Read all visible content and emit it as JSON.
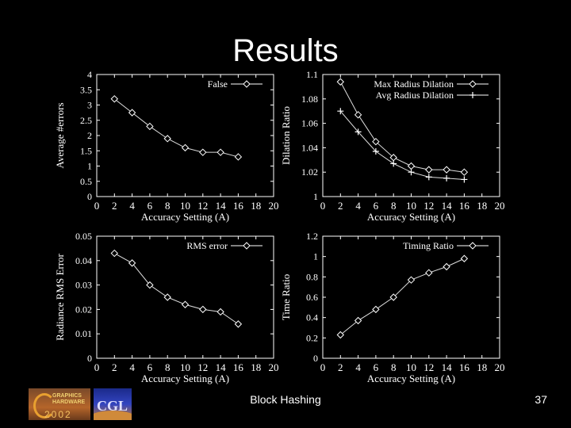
{
  "slide": {
    "title": "Results",
    "footer": "Block Hashing",
    "page": "37",
    "logos": [
      "graphics-hardware-2002-logo",
      "cgl-logo"
    ],
    "logo_text": {
      "line1": "GRAPHICS",
      "line2": "HARDWARE",
      "year": "2002",
      "cgl": "CGL"
    }
  },
  "chart_data": [
    {
      "type": "line",
      "xlabel": "Accuracy Setting (A)",
      "ylabel": "Average #errors",
      "xlim": [
        0,
        20
      ],
      "ylim": [
        0,
        4
      ],
      "xticks": [
        0,
        2,
        4,
        6,
        8,
        10,
        12,
        14,
        16,
        18,
        20
      ],
      "yticks": [
        0,
        0.5,
        1,
        1.5,
        2,
        2.5,
        3,
        3.5,
        4
      ],
      "ytick_labels": [
        "0",
        "0.5",
        "1",
        "1.5",
        "2",
        "2.5",
        "3",
        "3.5",
        "4"
      ],
      "legend_position": "top-right",
      "series": [
        {
          "name": "False",
          "marker": "diamond",
          "x": [
            2,
            4,
            6,
            8,
            10,
            12,
            14,
            16
          ],
          "y": [
            3.2,
            2.75,
            2.3,
            1.9,
            1.6,
            1.45,
            1.45,
            1.3
          ]
        }
      ]
    },
    {
      "type": "line",
      "xlabel": "Accuracy Setting (A)",
      "ylabel": "Dilation Ratio",
      "xlim": [
        0,
        20
      ],
      "ylim": [
        1,
        1.1
      ],
      "xticks": [
        0,
        2,
        4,
        6,
        8,
        10,
        12,
        14,
        16,
        18,
        20
      ],
      "yticks": [
        1,
        1.02,
        1.04,
        1.06,
        1.08,
        1.1
      ],
      "ytick_labels": [
        "1",
        "1.02",
        "1.04",
        "1.06",
        "1.08",
        "1.1"
      ],
      "legend_position": "top-right",
      "series": [
        {
          "name": "Max Radius Dilation",
          "marker": "diamond",
          "x": [
            2,
            4,
            6,
            8,
            10,
            12,
            14,
            16
          ],
          "y": [
            1.094,
            1.067,
            1.045,
            1.032,
            1.025,
            1.022,
            1.022,
            1.02
          ]
        },
        {
          "name": "Avg Radius Dilation",
          "marker": "plus",
          "x": [
            2,
            4,
            6,
            8,
            10,
            12,
            14,
            16
          ],
          "y": [
            1.07,
            1.053,
            1.037,
            1.027,
            1.02,
            1.016,
            1.015,
            1.014
          ]
        }
      ]
    },
    {
      "type": "line",
      "xlabel": "Accuracy Setting (A)",
      "ylabel": "Radiance RMS Error",
      "xlim": [
        0,
        20
      ],
      "ylim": [
        0,
        0.05
      ],
      "xticks": [
        0,
        2,
        4,
        6,
        8,
        10,
        12,
        14,
        16,
        18,
        20
      ],
      "yticks": [
        0,
        0.01,
        0.02,
        0.03,
        0.04,
        0.05
      ],
      "ytick_labels": [
        "0",
        "0.01",
        "0.02",
        "0.03",
        "0.04",
        "0.05"
      ],
      "legend_position": "top-right",
      "series": [
        {
          "name": "RMS error",
          "marker": "diamond",
          "x": [
            2,
            4,
            6,
            8,
            10,
            12,
            14,
            16
          ],
          "y": [
            0.043,
            0.039,
            0.03,
            0.025,
            0.022,
            0.02,
            0.019,
            0.014
          ]
        }
      ]
    },
    {
      "type": "line",
      "xlabel": "Accuracy Setting (A)",
      "ylabel": "Time Ratio",
      "xlim": [
        0,
        20
      ],
      "ylim": [
        0,
        1.2
      ],
      "xticks": [
        0,
        2,
        4,
        6,
        8,
        10,
        12,
        14,
        16,
        18,
        20
      ],
      "yticks": [
        0,
        0.2,
        0.4,
        0.6,
        0.8,
        1,
        1.2
      ],
      "ytick_labels": [
        "0",
        "0.2",
        "0.4",
        "0.6",
        "0.8",
        "1",
        "1.2"
      ],
      "legend_position": "top-right",
      "series": [
        {
          "name": "Timing Ratio",
          "marker": "diamond",
          "x": [
            2,
            4,
            6,
            8,
            10,
            12,
            14,
            16
          ],
          "y": [
            0.23,
            0.37,
            0.48,
            0.6,
            0.77,
            0.84,
            0.9,
            0.98
          ]
        }
      ]
    }
  ]
}
